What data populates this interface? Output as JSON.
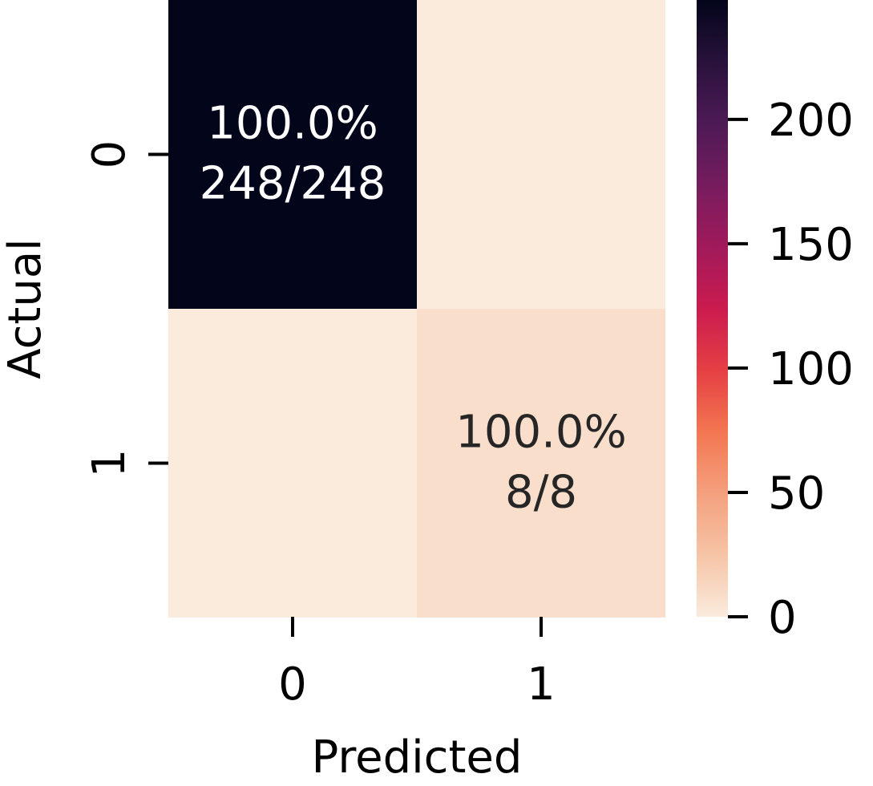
{
  "chart_data": {
    "type": "heatmap",
    "xlabel": "Predicted",
    "ylabel": "Actual",
    "x_categories": [
      "0",
      "1"
    ],
    "y_categories": [
      "0",
      "1"
    ],
    "values": [
      [
        248,
        0
      ],
      [
        0,
        8
      ]
    ],
    "cell_labels": [
      [
        {
          "percent": "100.0%",
          "count": "248/248"
        },
        null
      ],
      [
        null,
        {
          "percent": "100.0%",
          "count": "8/8"
        }
      ]
    ],
    "colorbar": {
      "min": 0,
      "max": 248,
      "ticks": [
        0,
        50,
        100,
        150,
        200
      ],
      "colormap": "rocket_r"
    }
  }
}
